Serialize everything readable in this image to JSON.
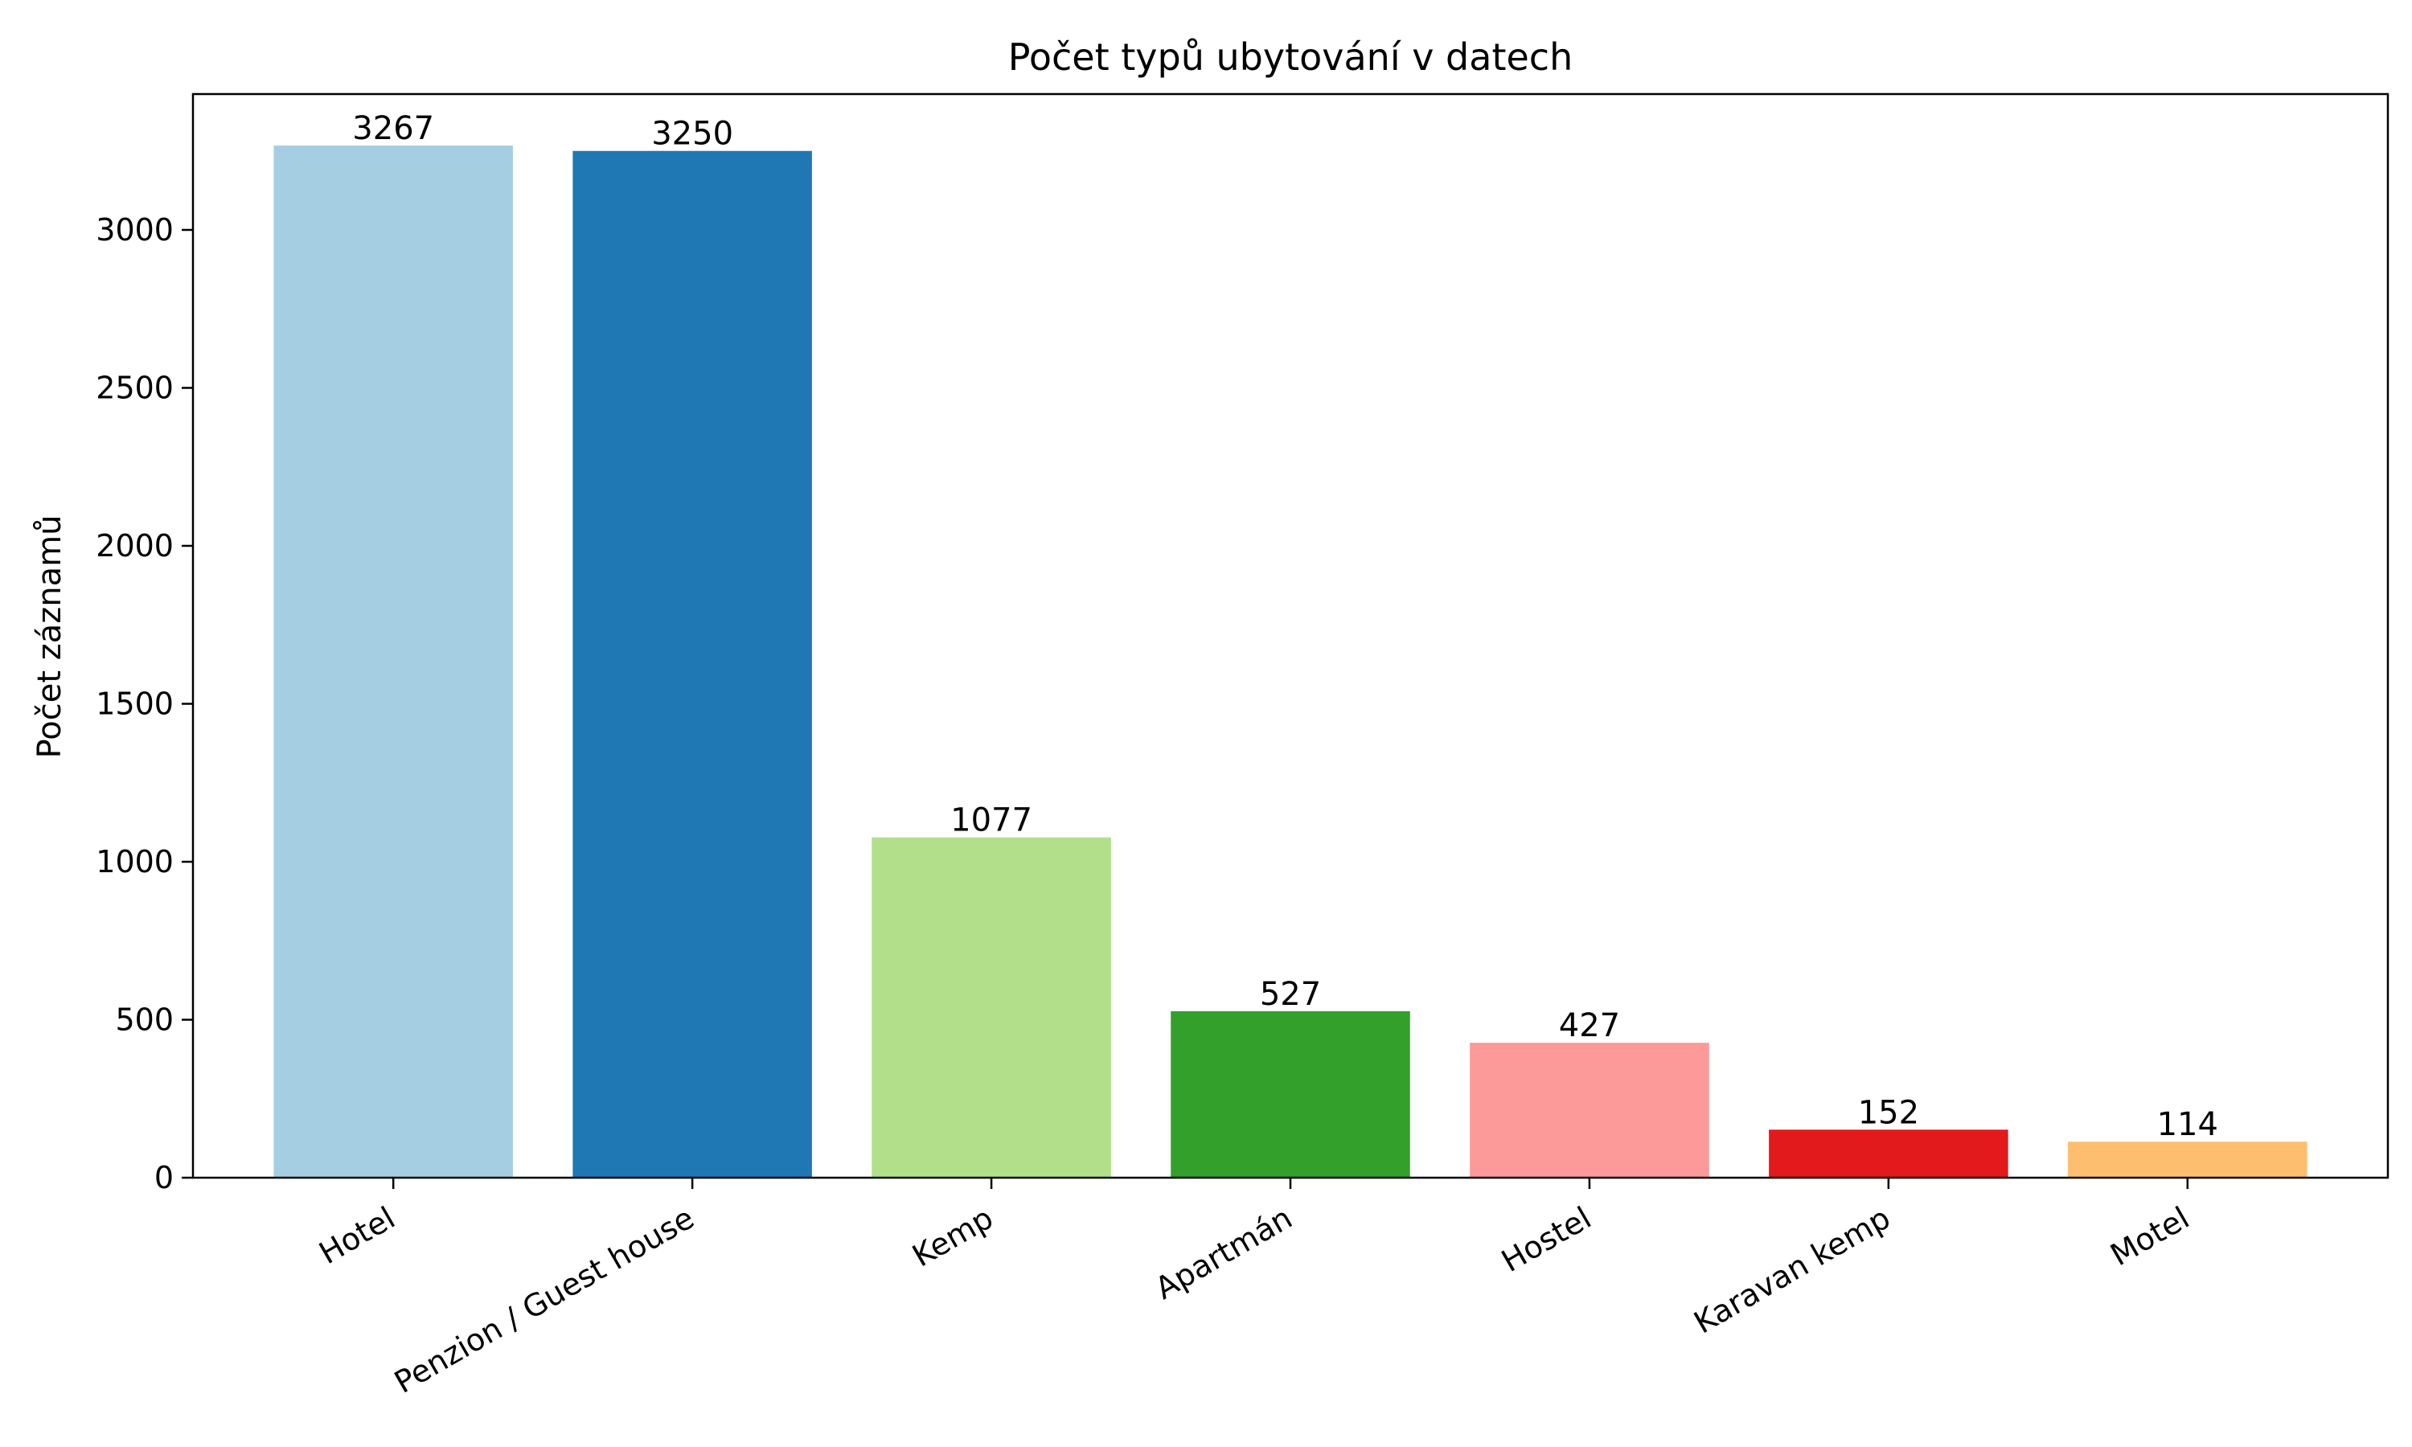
{
  "chart_data": {
    "type": "bar",
    "title": "Počet typů ubytování v datech",
    "xlabel": "",
    "ylabel": "Počet záznamů",
    "categories": [
      "Hotel",
      "Penzion / Guest house",
      "Kemp",
      "Apartmán",
      "Hostel",
      "Karavan kemp",
      "Motel"
    ],
    "values": [
      3267,
      3250,
      1077,
      527,
      427,
      152,
      114
    ],
    "colors": [
      "#a6cee3",
      "#1f78b4",
      "#b2df8a",
      "#33a02c",
      "#fb9a99",
      "#e31a1c",
      "#fdbf6f"
    ],
    "ylim": [
      0,
      3430
    ],
    "yticks": [
      0,
      500,
      1000,
      1500,
      2000,
      2500,
      3000
    ],
    "grid": false,
    "legend": "none"
  }
}
